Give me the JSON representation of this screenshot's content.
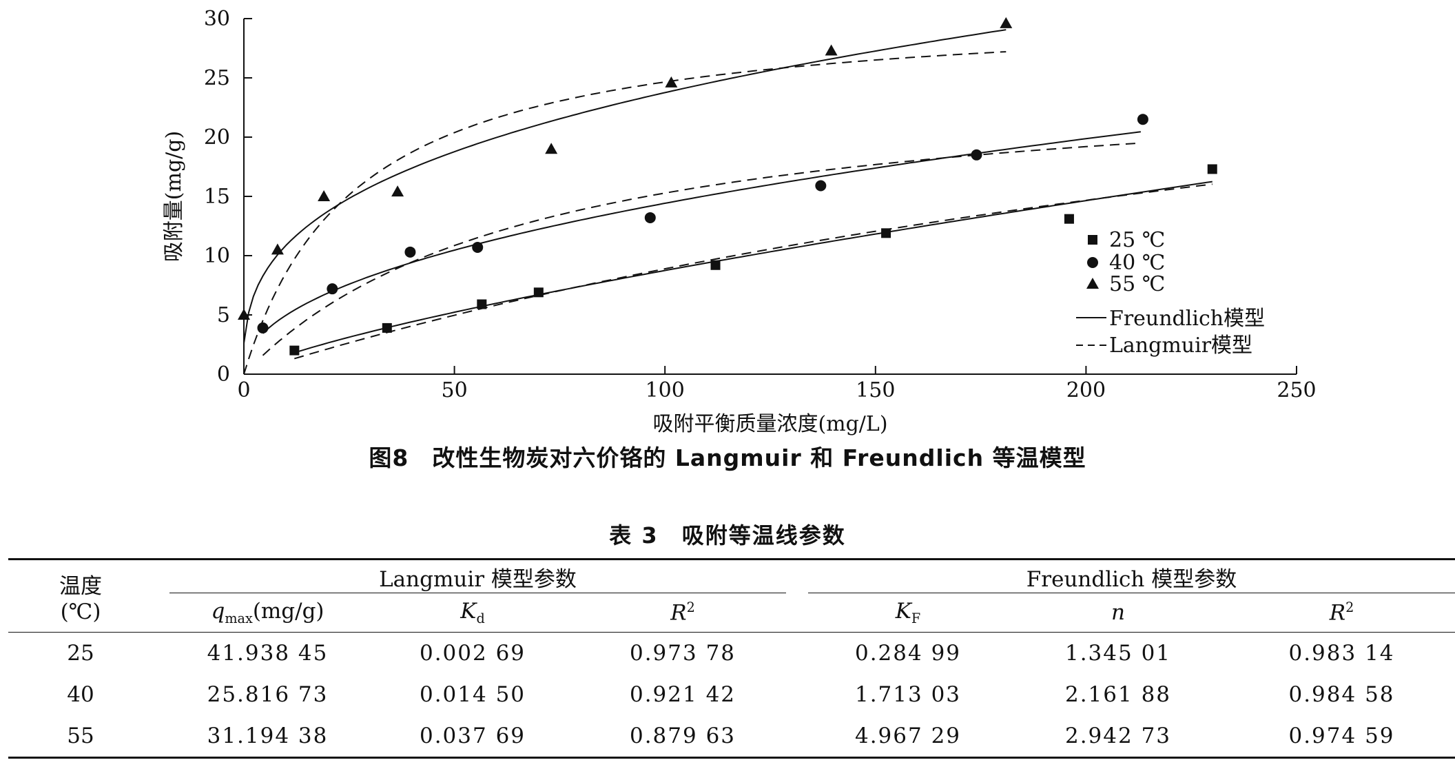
{
  "chart_data": {
    "type": "scatter",
    "xlabel": "吸附平衡质量浓度(mg/L)",
    "ylabel": "吸附量(mg/g)",
    "xlim": [
      0,
      250
    ],
    "ylim": [
      0,
      30
    ],
    "xticks": [
      "0",
      "50",
      "100",
      "150",
      "200",
      "250"
    ],
    "yticks": [
      "0",
      "5",
      "10",
      "15",
      "20",
      "25",
      "30"
    ],
    "grid": false,
    "legend_position": "right",
    "series": [
      {
        "name": "25 ℃",
        "marker": "square",
        "x": [
          12,
          34,
          56.5,
          70,
          112,
          152.5,
          196,
          230
        ],
        "y": [
          2,
          3.9,
          5.9,
          6.9,
          9.2,
          11.9,
          13.1,
          17.3
        ]
      },
      {
        "name": "40 ℃",
        "marker": "circle",
        "x": [
          4.5,
          21,
          39.5,
          55.5,
          96.5,
          137,
          174,
          213.5
        ],
        "y": [
          3.9,
          7.2,
          10.3,
          10.7,
          13.2,
          15.9,
          18.5,
          21.5
        ]
      },
      {
        "name": "55 ℃",
        "marker": "triangle",
        "x": [
          0,
          8,
          19,
          36.5,
          73,
          101.5,
          139.5,
          181
        ],
        "y": [
          5,
          10.5,
          15,
          15.4,
          19,
          24.6,
          27.3,
          29.6
        ]
      }
    ],
    "models": [
      {
        "name": "Freundlich模型",
        "style": "solid"
      },
      {
        "name": "Langmuir模型",
        "style": "dashed"
      }
    ],
    "fit_ranges": [
      {
        "temp": "25 ℃",
        "xmin": 12,
        "xmax": 230
      },
      {
        "temp": "40 ℃",
        "xmin": 4.5,
        "xmax": 213
      },
      {
        "temp": "55 ℃",
        "xmin": 0,
        "xmax": 181
      }
    ]
  },
  "figure": {
    "caption": "图8　改性生物炭对六价铬的 Langmuir 和 Freundlich 等温模型"
  },
  "table": {
    "title": "表 3　吸附等温线参数",
    "col_temp_line1": "温度",
    "col_temp_line2": "(℃)",
    "group_langmuir": "Langmuir 模型参数",
    "group_freundlich": "Freundlich 模型参数",
    "h_qmax_sym": "q",
    "h_qmax_sub": "max",
    "h_qmax_unit": "(mg/g)",
    "h_kd_sym": "K",
    "h_kd_sub": "d",
    "h_r2_sym": "R",
    "h_r2_sup": "2",
    "h_kf_sym": "K",
    "h_kf_sub": "F",
    "h_n_sym": "n",
    "rows": [
      {
        "temp": "25",
        "qmax": "41.938 45",
        "kd": "0.002 69",
        "r2l": "0.973 78",
        "kf": "0.284 99",
        "n": "1.345 01",
        "r2f": "0.983 14"
      },
      {
        "temp": "40",
        "qmax": "25.816 73",
        "kd": "0.014 50",
        "r2l": "0.921 42",
        "kf": "1.713 03",
        "n": "2.161 88",
        "r2f": "0.984 58"
      },
      {
        "temp": "55",
        "qmax": "31.194 38",
        "kd": "0.037 69",
        "r2l": "0.879 63",
        "kf": "4.967 29",
        "n": "2.942 73",
        "r2f": "0.974 59"
      }
    ]
  }
}
